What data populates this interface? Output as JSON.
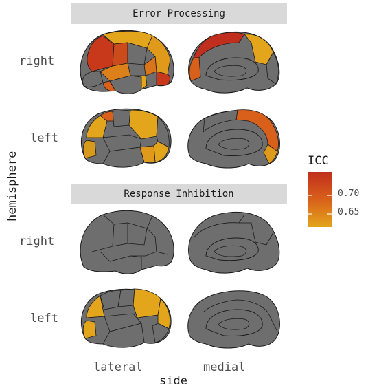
{
  "chart_data": {
    "type": "heatmap",
    "panels": [
      {
        "title": "Error Processing"
      },
      {
        "title": "Response Inhibition"
      }
    ],
    "rows": [
      "right",
      "left"
    ],
    "columns": [
      "lateral",
      "medial"
    ],
    "xlabel": "side",
    "ylabel": "hemisphere",
    "legend": {
      "title": "ICC",
      "ticks": [
        0.65,
        0.7
      ],
      "range": [
        0.62,
        0.73
      ],
      "colors": [
        "#e3a51b",
        "#d8601a",
        "#c02f1e"
      ],
      "placement": "right"
    },
    "cells": [
      {
        "panel": "Error Processing",
        "hemisphere": "right",
        "side": "lateral",
        "highlighted_regions": 10,
        "icc_range": [
          0.63,
          0.72
        ]
      },
      {
        "panel": "Error Processing",
        "hemisphere": "right",
        "side": "medial",
        "highlighted_regions": 3,
        "icc_range": [
          0.64,
          0.72
        ]
      },
      {
        "panel": "Error Processing",
        "hemisphere": "left",
        "side": "lateral",
        "highlighted_regions": 6,
        "icc_range": [
          0.63,
          0.68
        ]
      },
      {
        "panel": "Error Processing",
        "hemisphere": "left",
        "side": "medial",
        "highlighted_regions": 2,
        "icc_range": [
          0.67,
          0.69
        ]
      },
      {
        "panel": "Response Inhibition",
        "hemisphere": "right",
        "side": "lateral",
        "highlighted_regions": 0,
        "icc_range": []
      },
      {
        "panel": "Response Inhibition",
        "hemisphere": "right",
        "side": "medial",
        "highlighted_regions": 0,
        "icc_range": []
      },
      {
        "panel": "Response Inhibition",
        "hemisphere": "left",
        "side": "lateral",
        "highlighted_regions": 4,
        "icc_range": [
          0.63,
          0.65
        ]
      },
      {
        "panel": "Response Inhibition",
        "hemisphere": "left",
        "side": "medial",
        "highlighted_regions": 0,
        "icc_range": []
      }
    ],
    "no_data_color": "#6e6e6e"
  }
}
